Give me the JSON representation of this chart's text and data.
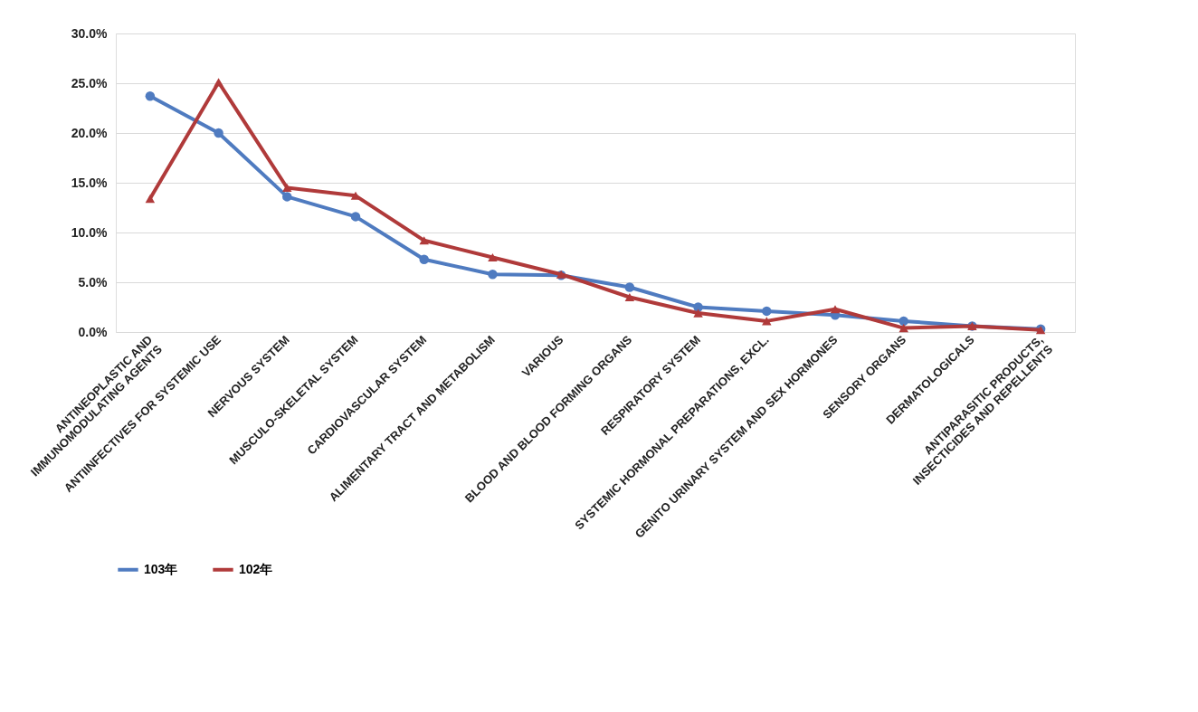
{
  "chart_data": {
    "type": "line",
    "categories": [
      "ANTINEOPLASTIC AND\nIMMUNOMODULATING AGENTS",
      "ANTIINFECTIVES FOR SYSTEMIC USE",
      "NERVOUS SYSTEM",
      "MUSCULO-SKELETAL SYSTEM",
      "CARDIOVASCULAR SYSTEM",
      "ALIMENTARY TRACT AND METABOLISM",
      "VARIOUS",
      "BLOOD AND BLOOD FORMING ORGANS",
      "RESPIRATORY SYSTEM",
      "SYSTEMIC HORMONAL PREPARATIONS, EXCL.",
      "GENITO URINARY SYSTEM AND SEX HORMONES",
      "SENSORY ORGANS",
      "DERMATOLOGICALS",
      "ANTIPARASITIC PRODUCTS,\nINSECTICIDES AND REPELLENTS"
    ],
    "series": [
      {
        "name": "103年",
        "color": "#4f7bc0",
        "marker": "circle",
        "values": [
          23.7,
          20.0,
          13.6,
          11.6,
          7.3,
          5.8,
          5.7,
          4.5,
          2.5,
          2.1,
          1.7,
          1.1,
          0.6,
          0.3
        ]
      },
      {
        "name": "102年",
        "color": "#b03a3a",
        "marker": "triangle",
        "values": [
          13.4,
          25.1,
          14.5,
          13.7,
          9.2,
          7.5,
          5.8,
          3.5,
          1.9,
          1.1,
          2.3,
          0.4,
          0.6,
          0.2
        ]
      }
    ],
    "ylim": [
      0,
      30
    ],
    "yticks": [
      {
        "value": 0,
        "label": "0.0%"
      },
      {
        "value": 5,
        "label": "5.0%"
      },
      {
        "value": 10,
        "label": "10.0%"
      },
      {
        "value": 15,
        "label": "15.0%"
      },
      {
        "value": 20,
        "label": "20.0%"
      },
      {
        "value": 25,
        "label": "25.0%"
      },
      {
        "value": 30,
        "label": "30.0%"
      }
    ],
    "grid": "y",
    "legend": "bottom",
    "line_style": "solid"
  }
}
